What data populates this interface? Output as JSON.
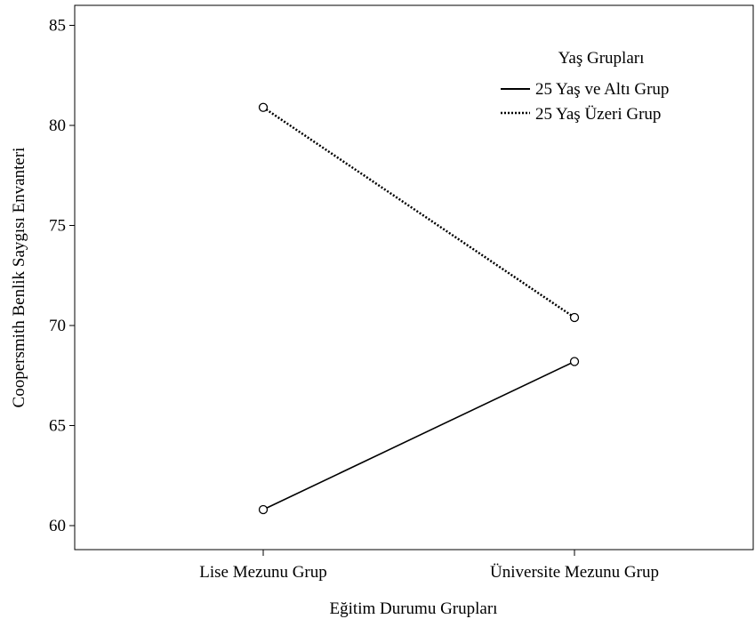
{
  "chart_data": {
    "type": "line",
    "xlabel": "Eğitim Durumu Grupları",
    "ylabel": "Coopersmith Benlik Saygısı Envanteri",
    "categories": [
      "Lise Mezunu Grup",
      "Üniversite Mezunu Grup"
    ],
    "ylim": [
      58.8,
      86
    ],
    "yticks": [
      60,
      65,
      70,
      75,
      80,
      85
    ],
    "grid": false,
    "legend": {
      "title": "Yaş Grupları",
      "placement": "top-right"
    },
    "series": [
      {
        "name": "25 Yaş ve Altı Grup",
        "values": [
          60.8,
          68.2
        ],
        "line_style": "solid",
        "color": "#000000"
      },
      {
        "name": "25 Yaş Üzeri Grup",
        "values": [
          80.9,
          70.4
        ],
        "line_style": "dotted",
        "color": "#000000"
      }
    ]
  }
}
